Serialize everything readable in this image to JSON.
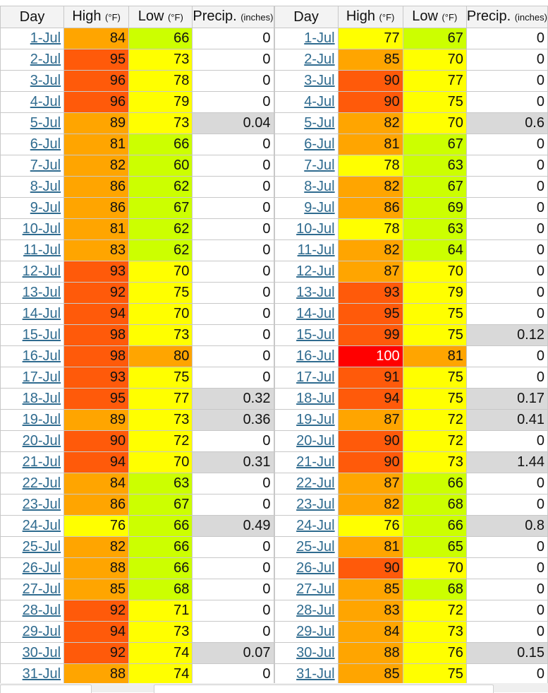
{
  "colors": {
    "red": "#ff0000",
    "red_orange": "#ff5a0a",
    "orange": "#ffa500",
    "yellow": "#ffff00",
    "lime": "#ccff00",
    "gray": "#d9d9d9",
    "white": "#ffffff"
  },
  "tables": [
    {
      "headers": {
        "day": "Day",
        "high": "High",
        "high_unit": "(°F)",
        "low": "Low",
        "low_unit": "(°F)",
        "precip": "Precip.",
        "precip_unit": "(inches)"
      },
      "rows": [
        {
          "day": "1-Jul",
          "high": "84",
          "low": "66",
          "precip": "0"
        },
        {
          "day": "2-Jul",
          "high": "95",
          "low": "73",
          "precip": "0"
        },
        {
          "day": "3-Jul",
          "high": "96",
          "low": "78",
          "precip": "0"
        },
        {
          "day": "4-Jul",
          "high": "96",
          "low": "79",
          "precip": "0"
        },
        {
          "day": "5-Jul",
          "high": "89",
          "low": "73",
          "precip": "0.04"
        },
        {
          "day": "6-Jul",
          "high": "81",
          "low": "66",
          "precip": "0"
        },
        {
          "day": "7-Jul",
          "high": "82",
          "low": "60",
          "precip": "0"
        },
        {
          "day": "8-Jul",
          "high": "86",
          "low": "62",
          "precip": "0"
        },
        {
          "day": "9-Jul",
          "high": "86",
          "low": "67",
          "precip": "0"
        },
        {
          "day": "10-Jul",
          "high": "81",
          "low": "62",
          "precip": "0"
        },
        {
          "day": "11-Jul",
          "high": "83",
          "low": "62",
          "precip": "0"
        },
        {
          "day": "12-Jul",
          "high": "93",
          "low": "70",
          "precip": "0"
        },
        {
          "day": "13-Jul",
          "high": "92",
          "low": "75",
          "precip": "0"
        },
        {
          "day": "14-Jul",
          "high": "94",
          "low": "70",
          "precip": "0"
        },
        {
          "day": "15-Jul",
          "high": "98",
          "low": "73",
          "precip": "0"
        },
        {
          "day": "16-Jul",
          "high": "98",
          "low": "80",
          "precip": "0"
        },
        {
          "day": "17-Jul",
          "high": "93",
          "low": "75",
          "precip": "0"
        },
        {
          "day": "18-Jul",
          "high": "95",
          "low": "77",
          "precip": "0.32"
        },
        {
          "day": "19-Jul",
          "high": "89",
          "low": "73",
          "precip": "0.36"
        },
        {
          "day": "20-Jul",
          "high": "90",
          "low": "72",
          "precip": "0"
        },
        {
          "day": "21-Jul",
          "high": "94",
          "low": "70",
          "precip": "0.31"
        },
        {
          "day": "22-Jul",
          "high": "84",
          "low": "63",
          "precip": "0"
        },
        {
          "day": "23-Jul",
          "high": "86",
          "low": "67",
          "precip": "0"
        },
        {
          "day": "24-Jul",
          "high": "76",
          "low": "66",
          "precip": "0.49"
        },
        {
          "day": "25-Jul",
          "high": "82",
          "low": "66",
          "precip": "0"
        },
        {
          "day": "26-Jul",
          "high": "88",
          "low": "66",
          "precip": "0"
        },
        {
          "day": "27-Jul",
          "high": "85",
          "low": "68",
          "precip": "0"
        },
        {
          "day": "28-Jul",
          "high": "92",
          "low": "71",
          "precip": "0"
        },
        {
          "day": "29-Jul",
          "high": "94",
          "low": "73",
          "precip": "0"
        },
        {
          "day": "30-Jul",
          "high": "92",
          "low": "74",
          "precip": "0.07"
        },
        {
          "day": "31-Jul",
          "high": "88",
          "low": "74",
          "precip": "0"
        }
      ]
    },
    {
      "headers": {
        "day": "Day",
        "high": "High",
        "high_unit": "(°F)",
        "low": "Low",
        "low_unit": "(°F)",
        "precip": "Precip.",
        "precip_unit": "(inches)"
      },
      "rows": [
        {
          "day": "1-Jul",
          "high": "77",
          "low": "67",
          "precip": "0"
        },
        {
          "day": "2-Jul",
          "high": "85",
          "low": "70",
          "precip": "0"
        },
        {
          "day": "3-Jul",
          "high": "90",
          "low": "77",
          "precip": "0"
        },
        {
          "day": "4-Jul",
          "high": "90",
          "low": "75",
          "precip": "0"
        },
        {
          "day": "5-Jul",
          "high": "82",
          "low": "70",
          "precip": "0.6"
        },
        {
          "day": "6-Jul",
          "high": "81",
          "low": "67",
          "precip": "0"
        },
        {
          "day": "7-Jul",
          "high": "78",
          "low": "63",
          "precip": "0"
        },
        {
          "day": "8-Jul",
          "high": "82",
          "low": "67",
          "precip": "0"
        },
        {
          "day": "9-Jul",
          "high": "86",
          "low": "69",
          "precip": "0"
        },
        {
          "day": "10-Jul",
          "high": "78",
          "low": "63",
          "precip": "0"
        },
        {
          "day": "11-Jul",
          "high": "82",
          "low": "64",
          "precip": "0"
        },
        {
          "day": "12-Jul",
          "high": "87",
          "low": "70",
          "precip": "0"
        },
        {
          "day": "13-Jul",
          "high": "93",
          "low": "79",
          "precip": "0"
        },
        {
          "day": "14-Jul",
          "high": "95",
          "low": "75",
          "precip": "0"
        },
        {
          "day": "15-Jul",
          "high": "99",
          "low": "75",
          "precip": "0.12"
        },
        {
          "day": "16-Jul",
          "high": "100",
          "low": "81",
          "precip": "0"
        },
        {
          "day": "17-Jul",
          "high": "91",
          "low": "75",
          "precip": "0"
        },
        {
          "day": "18-Jul",
          "high": "94",
          "low": "75",
          "precip": "0.17"
        },
        {
          "day": "19-Jul",
          "high": "87",
          "low": "72",
          "precip": "0.41"
        },
        {
          "day": "20-Jul",
          "high": "90",
          "low": "72",
          "precip": "0"
        },
        {
          "day": "21-Jul",
          "high": "90",
          "low": "73",
          "precip": "1.44"
        },
        {
          "day": "22-Jul",
          "high": "87",
          "low": "66",
          "precip": "0"
        },
        {
          "day": "23-Jul",
          "high": "82",
          "low": "68",
          "precip": "0"
        },
        {
          "day": "24-Jul",
          "high": "76",
          "low": "66",
          "precip": "0.8"
        },
        {
          "day": "25-Jul",
          "high": "81",
          "low": "65",
          "precip": "0"
        },
        {
          "day": "26-Jul",
          "high": "90",
          "low": "70",
          "precip": "0"
        },
        {
          "day": "27-Jul",
          "high": "85",
          "low": "68",
          "precip": "0"
        },
        {
          "day": "28-Jul",
          "high": "83",
          "low": "72",
          "precip": "0"
        },
        {
          "day": "29-Jul",
          "high": "84",
          "low": "73",
          "precip": "0"
        },
        {
          "day": "30-Jul",
          "high": "88",
          "low": "76",
          "precip": "0.15"
        },
        {
          "day": "31-Jul",
          "high": "85",
          "low": "75",
          "precip": "0"
        }
      ]
    }
  ]
}
